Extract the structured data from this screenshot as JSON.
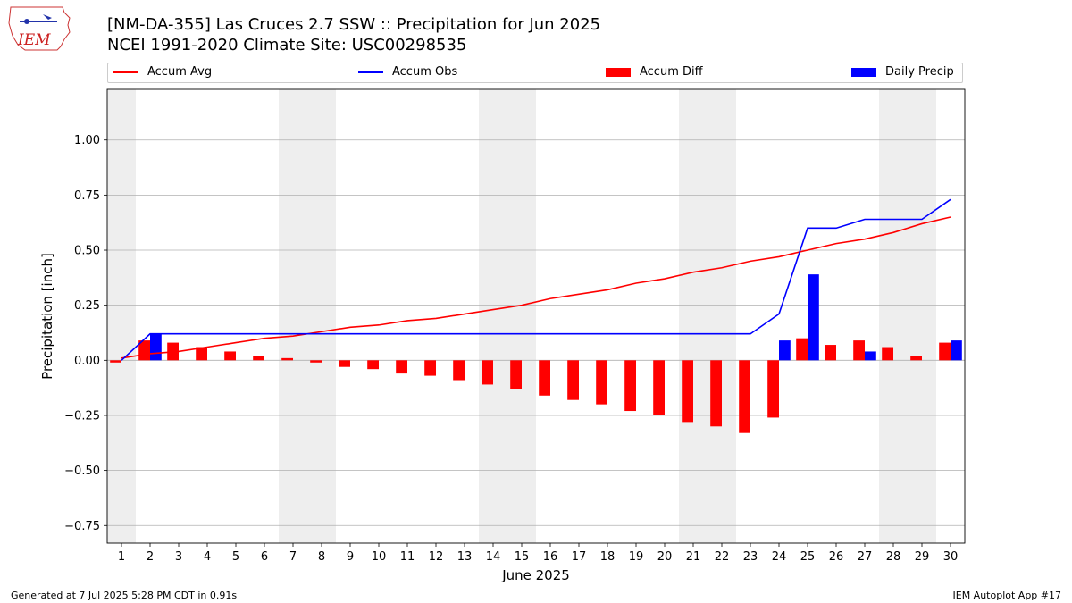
{
  "title": "[NM-DA-355] Las Cruces 2.7 SSW :: Precipitation for Jun 2025",
  "subtitle": "NCEI 1991-2020 Climate Site: USC00298535",
  "logo_text": "IEM",
  "footer_left": "Generated at 7 Jul 2025 5:28 PM CDT in 0.91s",
  "footer_right": "IEM Autoplot App #17",
  "colors": {
    "avg": "#ff0000",
    "obs": "#0000ff",
    "diff": "#ff0000",
    "daily": "#0000ff",
    "weekend_shade": "#eeeeee",
    "grid": "#b0b0b0"
  },
  "legend": {
    "avg": "Accum Avg",
    "obs": "Accum Obs",
    "diff": "Accum Diff",
    "daily": "Daily Precip"
  },
  "chart_data": {
    "type": "bar",
    "xlabel": "June 2025",
    "ylabel": "Precipitation [inch]",
    "xlim": [
      0.5,
      30.5
    ],
    "ylim": [
      -0.83,
      1.23
    ],
    "grid": true,
    "legend_placement": "top",
    "days": [
      1,
      2,
      3,
      4,
      5,
      6,
      7,
      8,
      9,
      10,
      11,
      12,
      13,
      14,
      15,
      16,
      17,
      18,
      19,
      20,
      21,
      22,
      23,
      24,
      25,
      26,
      27,
      28,
      29,
      30
    ],
    "yticks": [
      {
        "value": -0.75,
        "label": "−0.75"
      },
      {
        "value": -0.5,
        "label": "−0.50"
      },
      {
        "value": -0.25,
        "label": "−0.25"
      },
      {
        "value": 0,
        "label": "0.00"
      },
      {
        "value": 0.25,
        "label": "0.25"
      },
      {
        "value": 0.5,
        "label": "0.50"
      },
      {
        "value": 0.75,
        "label": "0.75"
      },
      {
        "value": 1.0,
        "label": "1.00"
      }
    ],
    "weekend_days": [
      1,
      7,
      8,
      14,
      15,
      21,
      22,
      28,
      29
    ],
    "series": [
      {
        "name": "Accum Avg",
        "kind": "line",
        "values": [
          0.01,
          0.03,
          0.04,
          0.06,
          0.08,
          0.1,
          0.11,
          0.13,
          0.15,
          0.16,
          0.18,
          0.19,
          0.21,
          0.23,
          0.25,
          0.28,
          0.3,
          0.32,
          0.35,
          0.37,
          0.4,
          0.42,
          0.45,
          0.47,
          0.5,
          0.53,
          0.55,
          0.58,
          0.62,
          0.65
        ]
      },
      {
        "name": "Accum Obs",
        "kind": "line",
        "values": [
          0.0,
          0.12,
          0.12,
          0.12,
          0.12,
          0.12,
          0.12,
          0.12,
          0.12,
          0.12,
          0.12,
          0.12,
          0.12,
          0.12,
          0.12,
          0.12,
          0.12,
          0.12,
          0.12,
          0.12,
          0.12,
          0.12,
          0.12,
          0.21,
          0.6,
          0.6,
          0.64,
          0.64,
          0.64,
          0.73
        ]
      },
      {
        "name": "Accum Diff",
        "kind": "bar",
        "values": [
          -0.01,
          0.09,
          0.08,
          0.06,
          0.04,
          0.02,
          0.01,
          -0.01,
          -0.03,
          -0.04,
          -0.06,
          -0.07,
          -0.09,
          -0.11,
          -0.13,
          -0.16,
          -0.18,
          -0.2,
          -0.23,
          -0.25,
          -0.28,
          -0.3,
          -0.33,
          -0.26,
          0.1,
          0.07,
          0.09,
          0.06,
          0.02,
          0.08
        ]
      },
      {
        "name": "Daily Precip",
        "kind": "bar",
        "values": [
          0,
          0.12,
          0,
          0,
          0,
          0,
          0,
          0,
          0,
          0,
          0,
          0,
          0,
          0,
          0,
          0,
          0,
          0,
          0,
          0,
          0,
          0,
          0,
          0.09,
          0.39,
          0,
          0.04,
          0,
          0,
          0.09
        ]
      }
    ]
  }
}
